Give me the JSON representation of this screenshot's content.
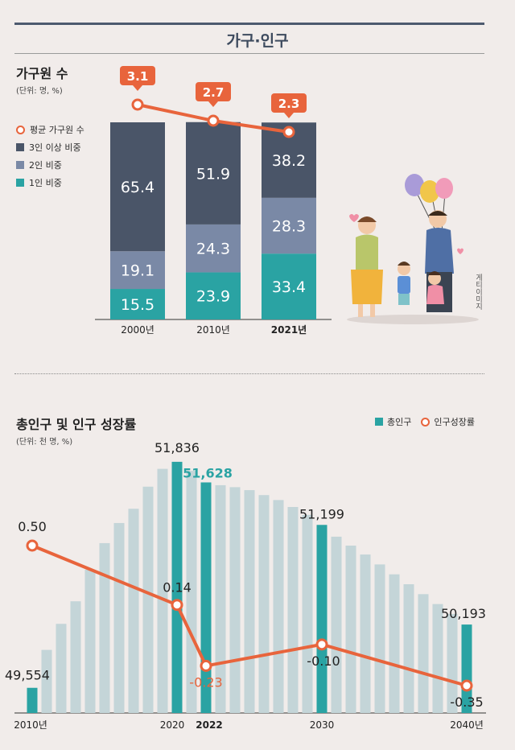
{
  "header": {
    "title": "가구·인구"
  },
  "section1": {
    "title": "가구원 수",
    "unit": "(단위: 명, %)",
    "credit": "게티이미지"
  },
  "section2": {
    "title": "총인구 및 인구 성장률",
    "unit": "(단위: 천 명, %)"
  },
  "colors": {
    "navy": "#4a5568",
    "slate": "#7a89a6",
    "teal": "#2aa3a3",
    "orange": "#e8643c",
    "lightbar": "#c4d5d8",
    "darkteal": "#2aa3a3"
  },
  "chart_data": [
    {
      "type": "bar",
      "stacked": true,
      "categories": [
        "2000년",
        "2010년",
        "2021년"
      ],
      "series": [
        {
          "name": "1인 비중",
          "values": [
            15.5,
            23.9,
            33.4
          ]
        },
        {
          "name": "2인 비중",
          "values": [
            19.1,
            24.3,
            28.3
          ]
        },
        {
          "name": "3인 이상 비중",
          "values": [
            65.4,
            51.9,
            38.2
          ]
        }
      ],
      "line": {
        "name": "평균 가구원 수",
        "values": [
          3.1,
          2.7,
          2.3
        ]
      },
      "legend": [
        "평균 가구원 수",
        "3인 이상 비중",
        "2인 비중",
        "1인 비중"
      ]
    },
    {
      "type": "bar",
      "years": [
        2010,
        2011,
        2012,
        2013,
        2014,
        2015,
        2016,
        2017,
        2018,
        2019,
        2020,
        2021,
        2022,
        2023,
        2024,
        2025,
        2026,
        2027,
        2028,
        2029,
        2030,
        2031,
        2032,
        2033,
        2034,
        2035,
        2036,
        2037,
        2038,
        2039,
        2040
      ],
      "population": [
        49554,
        49937,
        50200,
        50428,
        50747,
        51015,
        51218,
        51362,
        51585,
        51765,
        51836,
        51745,
        51628,
        51600,
        51580,
        51550,
        51500,
        51450,
        51380,
        51300,
        51199,
        51080,
        50990,
        50900,
        50800,
        50700,
        50600,
        50500,
        50400,
        50300,
        50193
      ],
      "highlight_labels": [
        {
          "year": 2010,
          "label": "49,554"
        },
        {
          "year": 2020,
          "label": "51,836"
        },
        {
          "year": 2022,
          "label": "51,628"
        },
        {
          "year": 2030,
          "label": "51,199"
        },
        {
          "year": 2040,
          "label": "50,193"
        }
      ],
      "growth_line": {
        "name": "인구성장률",
        "points": [
          {
            "year": 2010,
            "value": 0.5,
            "label": "0.50"
          },
          {
            "year": 2020,
            "value": 0.14,
            "label": "0.14"
          },
          {
            "year": 2022,
            "value": -0.23,
            "label": "-0.23"
          },
          {
            "year": 2030,
            "value": -0.1,
            "label": "-0.10"
          },
          {
            "year": 2040,
            "value": -0.35,
            "label": "-0.35"
          }
        ]
      },
      "x_labels": [
        {
          "year": 2010,
          "label": "2010년"
        },
        {
          "year": 2020,
          "label": "2020"
        },
        {
          "year": 2022,
          "label": "2022"
        },
        {
          "year": 2030,
          "label": "2030"
        },
        {
          "year": 2040,
          "label": "2040년"
        }
      ],
      "legend": [
        "총인구",
        "인구성장률"
      ]
    }
  ]
}
